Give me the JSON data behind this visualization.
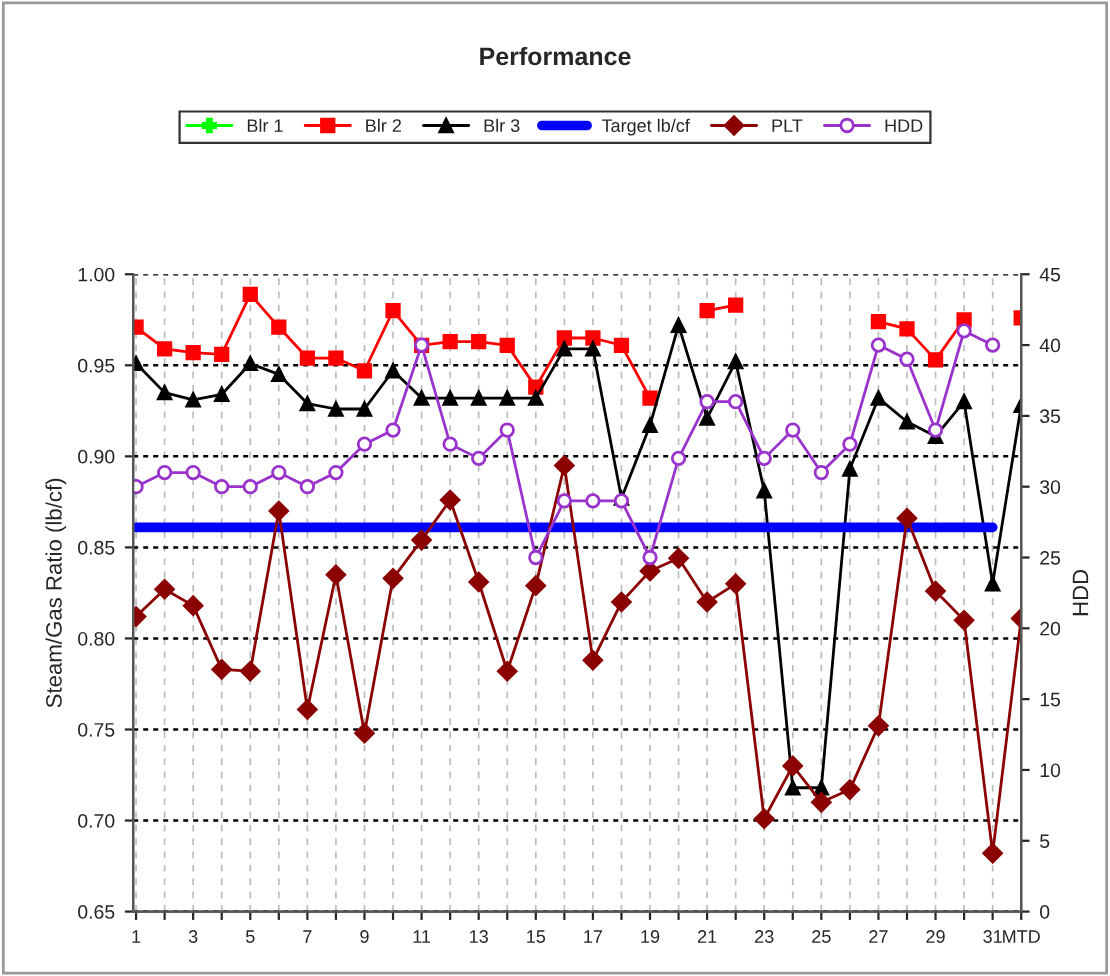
{
  "chart_data": {
    "type": "line",
    "title": "Performance",
    "ylabel": "Steam/Gas Ratio (lb/cf)",
    "y2label": "HDD",
    "categories": [
      "1",
      null,
      "3",
      null,
      "5",
      null,
      "7",
      null,
      "9",
      null,
      "11",
      null,
      "13",
      null,
      "15",
      null,
      "17",
      null,
      "19",
      null,
      "21",
      null,
      "23",
      null,
      "25",
      null,
      "27",
      null,
      "29",
      null,
      "31",
      "MTD"
    ],
    "ylim": [
      0.65,
      1.0
    ],
    "yticks": [
      {
        "value": 0.65,
        "label": "0.65"
      },
      {
        "value": 0.7,
        "label": "0.70"
      },
      {
        "value": 0.75,
        "label": "0.75"
      },
      {
        "value": 0.8,
        "label": "0.80"
      },
      {
        "value": 0.85,
        "label": "0.85"
      },
      {
        "value": 0.9,
        "label": "0.90"
      },
      {
        "value": 0.95,
        "label": "0.95"
      },
      {
        "value": 1.0,
        "label": "1.00"
      }
    ],
    "y2lim": [
      0,
      45
    ],
    "y2ticks": [
      0,
      5,
      10,
      15,
      20,
      25,
      30,
      35,
      40,
      45
    ],
    "grid": true,
    "legend": "top",
    "series": [
      {
        "name": "Blr 1",
        "color": "#00ff00",
        "marker": "cross",
        "values": [
          null,
          null,
          null,
          null,
          null,
          null,
          null,
          null,
          null,
          null,
          null,
          null,
          null,
          null,
          null,
          null,
          null,
          null,
          null,
          null,
          null,
          null,
          null,
          null,
          null,
          null,
          null,
          null,
          null,
          null,
          null,
          null
        ]
      },
      {
        "name": "Blr 2",
        "color": "#ff0000",
        "marker": "square",
        "values": [
          0.971,
          0.959,
          0.957,
          0.956,
          0.989,
          0.971,
          0.954,
          0.954,
          0.947,
          0.98,
          0.961,
          0.963,
          0.963,
          0.961,
          0.938,
          0.965,
          0.965,
          0.961,
          0.932,
          null,
          0.98,
          0.983,
          null,
          null,
          null,
          null,
          0.974,
          0.97,
          0.953,
          0.975,
          null,
          0.976
        ]
      },
      {
        "name": "Blr 3",
        "color": "#000000",
        "marker": "triangle",
        "values": [
          0.951,
          0.935,
          0.931,
          0.934,
          0.951,
          0.945,
          0.929,
          0.926,
          0.926,
          0.947,
          0.932,
          0.932,
          0.932,
          0.932,
          0.932,
          0.959,
          0.959,
          0.877,
          0.917,
          0.972,
          0.921,
          0.952,
          0.881,
          0.718,
          0.718,
          0.893,
          0.932,
          0.919,
          0.911,
          0.93,
          0.83,
          0.928
        ]
      },
      {
        "name": "Target lb/cf",
        "color": "#0000ff",
        "marker": "none",
        "values": [
          0.861,
          0.861,
          0.861,
          0.861,
          0.861,
          0.861,
          0.861,
          0.861,
          0.861,
          0.861,
          0.861,
          0.861,
          0.861,
          0.861,
          0.861,
          0.861,
          0.861,
          0.861,
          0.861,
          0.861,
          0.861,
          0.861,
          0.861,
          0.861,
          0.861,
          0.861,
          0.861,
          0.861,
          0.861,
          0.861,
          0.861,
          null
        ]
      },
      {
        "name": "PLT",
        "color": "#8b0000",
        "marker": "diamond",
        "values": [
          0.812,
          0.827,
          0.818,
          0.783,
          0.782,
          0.87,
          0.761,
          0.835,
          0.748,
          0.833,
          0.854,
          0.876,
          0.831,
          0.782,
          0.829,
          0.895,
          0.788,
          0.82,
          0.837,
          0.844,
          0.82,
          0.83,
          0.701,
          0.73,
          0.71,
          0.717,
          0.752,
          0.866,
          0.826,
          0.81,
          0.682,
          0.811
        ]
      },
      {
        "name": "HDD",
        "color": "#9933cc",
        "marker": "circle",
        "axis": "y2",
        "values": [
          30,
          31,
          31,
          30,
          30,
          31,
          30,
          31,
          33,
          34,
          40,
          33,
          32,
          34,
          25,
          29,
          29,
          29,
          25,
          32,
          36,
          36,
          32,
          34,
          31,
          33,
          40,
          39,
          34,
          41,
          40,
          null
        ]
      }
    ]
  }
}
